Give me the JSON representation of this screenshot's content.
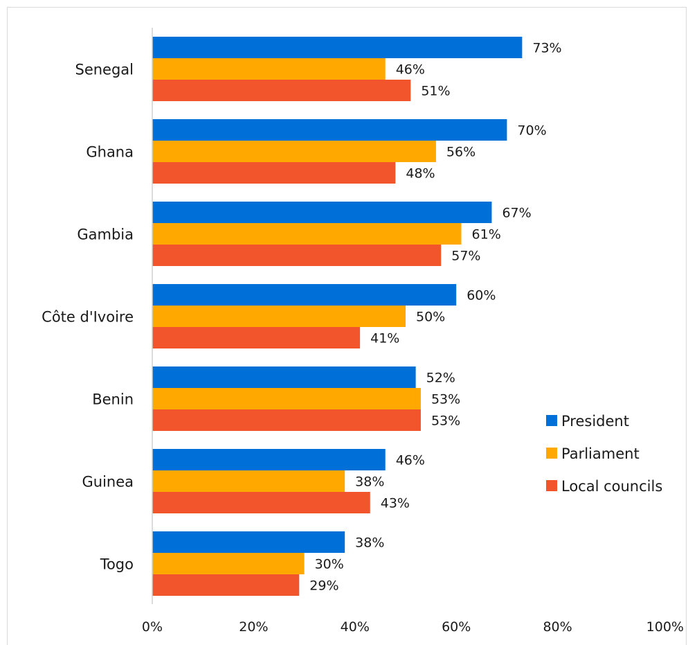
{
  "chart_data": {
    "type": "bar",
    "orientation": "horizontal",
    "categories": [
      "Senegal",
      "Ghana",
      "Gambia",
      "Côte d'Ivoire",
      "Benin",
      "Guinea",
      "Togo"
    ],
    "series": [
      {
        "name": "President",
        "color": "#0070d9",
        "values": [
          73,
          70,
          67,
          60,
          52,
          46,
          38
        ]
      },
      {
        "name": "Parliament",
        "color": "#ffa800",
        "values": [
          46,
          56,
          61,
          50,
          53,
          38,
          30
        ]
      },
      {
        "name": "Local councils",
        "color": "#f2552c",
        "values": [
          51,
          48,
          57,
          41,
          53,
          43,
          29
        ]
      }
    ],
    "value_labels": [
      [
        "73%",
        "46%",
        "51%"
      ],
      [
        "70%",
        "56%",
        "48%"
      ],
      [
        "67%",
        "61%",
        "57%"
      ],
      [
        "60%",
        "50%",
        "41%"
      ],
      [
        "52%",
        "53%",
        "53%"
      ],
      [
        "46%",
        "38%",
        "43%"
      ],
      [
        "38%",
        "30%",
        "29%"
      ]
    ],
    "x_ticks": [
      "0%",
      "20%",
      "40%",
      "60%",
      "80%",
      "100%"
    ],
    "xlim": [
      0,
      100
    ],
    "grid": false,
    "legend_position": "right"
  }
}
